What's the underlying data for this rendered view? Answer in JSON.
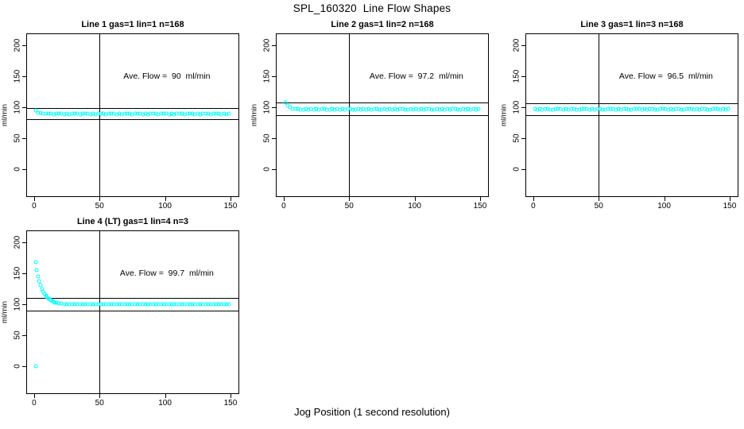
{
  "title": "SPL_160320  Line Flow Shapes",
  "xlabel": "Jog Position (1 second resolution)",
  "colors": {
    "points": "#00FFFF",
    "axis": "#000000",
    "background": "#FFFFFF"
  },
  "chart_data": [
    {
      "type": "scatter",
      "title": "Line 1 gas=1 lin=1 n=168",
      "annotation": "Ave. Flow =  90  ml/min",
      "ave_flow": 90,
      "ylabel": "ml/min",
      "x_ticks": [
        0,
        50,
        100,
        150
      ],
      "y_ticks": [
        0,
        50,
        100,
        150,
        200
      ],
      "xlim": [
        -6,
        156.7
      ],
      "ylim": [
        -45,
        219
      ],
      "vline_x": 50,
      "hlines": [
        99,
        81
      ],
      "x": [
        1,
        3,
        5,
        7,
        9,
        11,
        13,
        15,
        17,
        19,
        21,
        23,
        25,
        27,
        29,
        31,
        33,
        35,
        37,
        39,
        41,
        43,
        45,
        47,
        49,
        51,
        53,
        55,
        57,
        59,
        61,
        63,
        65,
        67,
        69,
        71,
        73,
        75,
        77,
        79,
        81,
        83,
        85,
        87,
        89,
        91,
        93,
        95,
        97,
        99,
        101,
        103,
        105,
        107,
        109,
        111,
        113,
        115,
        117,
        119,
        121,
        123,
        125,
        127,
        129,
        131,
        133,
        135,
        137,
        139,
        141,
        143,
        145,
        147,
        149
      ],
      "y": [
        94.4,
        91.0,
        91.1,
        89.3,
        89.7,
        90.1,
        89.2,
        88.7,
        89.7,
        89.3,
        89.8,
        88.9,
        90.1,
        88.8,
        89.5,
        90.0,
        89.1,
        88.7,
        89.7,
        89.3,
        89.8,
        88.9,
        90.1,
        88.8,
        89.5,
        90.0,
        89.1,
        88.7,
        89.7,
        89.3,
        89.8,
        88.9,
        90.1,
        88.8,
        89.5,
        90.0,
        89.1,
        88.7,
        89.7,
        89.3,
        89.8,
        88.9,
        90.1,
        88.8,
        89.5,
        90.0,
        89.1,
        88.7,
        89.7,
        89.3,
        89.8,
        88.9,
        90.1,
        88.8,
        89.5,
        90.0,
        89.1,
        88.7,
        89.7,
        89.3,
        89.8,
        88.9,
        90.1,
        88.8,
        89.5,
        90.0,
        89.1,
        88.7,
        89.7,
        89.3,
        89.8,
        88.9,
        90.1,
        88.8,
        89.5
      ]
    },
    {
      "type": "scatter",
      "title": "Line 2 gas=1 lin=2 n=168",
      "annotation": "Ave. Flow =  97.2  ml/min",
      "ave_flow": 97.2,
      "ylabel": "ml/min",
      "x_ticks": [
        0,
        50,
        100,
        150
      ],
      "y_ticks": [
        0,
        50,
        100,
        150,
        200
      ],
      "xlim": [
        -6,
        156.7
      ],
      "ylim": [
        -45,
        219
      ],
      "vline_x": 50,
      "hlines": [
        106.9,
        87.5
      ],
      "x": [
        1,
        3,
        5,
        7,
        9,
        11,
        13,
        15,
        17,
        19,
        21,
        23,
        25,
        27,
        29,
        31,
        33,
        35,
        37,
        39,
        41,
        43,
        45,
        47,
        49,
        51,
        53,
        55,
        57,
        59,
        61,
        63,
        65,
        67,
        69,
        71,
        73,
        75,
        77,
        79,
        81,
        83,
        85,
        87,
        89,
        91,
        93,
        95,
        97,
        99,
        101,
        103,
        105,
        107,
        109,
        111,
        113,
        115,
        117,
        119,
        121,
        123,
        125,
        127,
        129,
        131,
        133,
        135,
        137,
        139,
        141,
        143,
        145,
        147,
        149
      ],
      "y": [
        107.7,
        101.8,
        100.3,
        97.6,
        97.6,
        97.7,
        96.6,
        96.1,
        97.0,
        96.6,
        97.1,
        96.2,
        97.4,
        96.1,
        96.8,
        97.3,
        96.4,
        96.0,
        97.0,
        96.6,
        97.1,
        96.2,
        97.4,
        96.1,
        96.8,
        97.3,
        96.4,
        96.0,
        97.0,
        96.6,
        97.1,
        96.2,
        97.4,
        96.1,
        96.8,
        97.3,
        96.4,
        96.0,
        97.0,
        96.6,
        97.1,
        96.2,
        97.4,
        96.1,
        96.8,
        97.3,
        96.4,
        96.0,
        97.0,
        96.6,
        97.1,
        96.2,
        97.4,
        96.1,
        96.8,
        97.3,
        96.4,
        96.0,
        97.0,
        96.6,
        97.1,
        96.2,
        97.4,
        96.1,
        96.8,
        97.3,
        96.4,
        96.0,
        97.0,
        96.6,
        97.1,
        96.2,
        97.4,
        96.1,
        96.8
      ]
    },
    {
      "type": "scatter",
      "title": "Line 3 gas=1 lin=3 n=168",
      "annotation": "Ave. Flow =  96.5  ml/min",
      "ave_flow": 96.5,
      "ylabel": "ml/min",
      "x_ticks": [
        0,
        50,
        100,
        150
      ],
      "y_ticks": [
        0,
        50,
        100,
        150,
        200
      ],
      "xlim": [
        -6,
        156.7
      ],
      "ylim": [
        -45,
        219
      ],
      "vline_x": 50,
      "hlines": [
        106.2,
        86.9
      ],
      "x": [
        1,
        3,
        5,
        7,
        9,
        11,
        13,
        15,
        17,
        19,
        21,
        23,
        25,
        27,
        29,
        31,
        33,
        35,
        37,
        39,
        41,
        43,
        45,
        47,
        49,
        51,
        53,
        55,
        57,
        59,
        61,
        63,
        65,
        67,
        69,
        71,
        73,
        75,
        77,
        79,
        81,
        83,
        85,
        87,
        89,
        91,
        93,
        95,
        97,
        99,
        101,
        103,
        105,
        107,
        109,
        111,
        113,
        115,
        117,
        119,
        121,
        123,
        125,
        127,
        129,
        131,
        133,
        135,
        137,
        139,
        141,
        143,
        145,
        147,
        149
      ],
      "y": [
        97.3,
        96.4,
        97.6,
        96.3,
        97.0,
        97.5,
        96.6,
        96.2,
        97.2,
        96.8,
        97.3,
        96.4,
        97.6,
        96.3,
        97.0,
        97.5,
        96.6,
        96.2,
        97.2,
        96.8,
        97.3,
        96.4,
        97.6,
        96.3,
        97.0,
        97.5,
        96.6,
        96.2,
        97.2,
        96.8,
        97.3,
        96.4,
        97.6,
        96.3,
        97.0,
        97.5,
        96.6,
        96.2,
        97.2,
        96.8,
        97.3,
        96.4,
        97.6,
        96.3,
        97.0,
        97.5,
        96.6,
        96.2,
        97.2,
        96.8,
        97.3,
        96.4,
        97.6,
        96.3,
        97.0,
        97.5,
        96.6,
        96.2,
        97.2,
        96.8,
        97.3,
        96.4,
        97.6,
        96.3,
        97.0,
        97.5,
        96.6,
        96.2,
        97.2,
        96.8,
        97.3,
        96.4,
        97.6,
        96.3,
        97.0
      ]
    },
    {
      "type": "scatter",
      "title": "Line 4 (LT) gas=1 lin=4 n=3",
      "annotation": "Ave. Flow =  99.7  ml/min",
      "ave_flow": 99.7,
      "ylabel": "ml/min",
      "x_ticks": [
        0,
        50,
        100,
        150
      ],
      "y_ticks": [
        0,
        50,
        100,
        150,
        200
      ],
      "xlim": [
        -6,
        156.7
      ],
      "ylim": [
        -45,
        219
      ],
      "vline_x": 50,
      "hlines": [
        109.7,
        89.7
      ],
      "x": [
        1,
        1,
        2,
        3,
        4,
        5,
        6,
        7,
        8,
        9,
        10,
        11,
        12,
        13,
        14,
        15,
        16,
        17,
        19,
        21,
        23,
        25,
        27,
        29,
        31,
        33,
        35,
        37,
        39,
        41,
        43,
        45,
        47,
        49,
        51,
        53,
        55,
        57,
        59,
        61,
        63,
        65,
        67,
        69,
        71,
        73,
        75,
        77,
        79,
        81,
        83,
        85,
        87,
        89,
        91,
        93,
        95,
        97,
        99,
        101,
        103,
        105,
        107,
        109,
        111,
        113,
        115,
        117,
        119,
        121,
        123,
        125,
        127,
        129,
        131,
        133,
        135,
        137,
        139,
        141,
        143,
        145,
        147,
        149
      ],
      "y": [
        0,
        167.6,
        155.3,
        145.2,
        136.9,
        130.2,
        124.6,
        120.1,
        116.4,
        113.3,
        110.9,
        108.8,
        107.1,
        105.8,
        104.7,
        103.7,
        103.0,
        102.4,
        101.5,
        100.8,
        100.4,
        100.2,
        100.0,
        99.9,
        99.8,
        99.4,
        100.0,
        99.3,
        99.7,
        100.1,
        99.5,
        99.2,
        99.9,
        99.6,
        99.8,
        99.4,
        100.0,
        99.3,
        99.7,
        100.1,
        99.5,
        99.2,
        99.9,
        99.6,
        99.8,
        99.4,
        100.0,
        99.3,
        99.7,
        100.1,
        99.5,
        99.2,
        99.9,
        99.6,
        99.8,
        99.4,
        100.0,
        99.3,
        99.7,
        100.1,
        99.5,
        99.2,
        99.9,
        99.6,
        99.8,
        99.4,
        100.0,
        99.3,
        99.7,
        100.1,
        99.5,
        99.2,
        99.9,
        99.6,
        99.8,
        99.4,
        100.0,
        99.3,
        99.7,
        100.1,
        99.5,
        99.2,
        99.9,
        99.6
      ]
    }
  ]
}
